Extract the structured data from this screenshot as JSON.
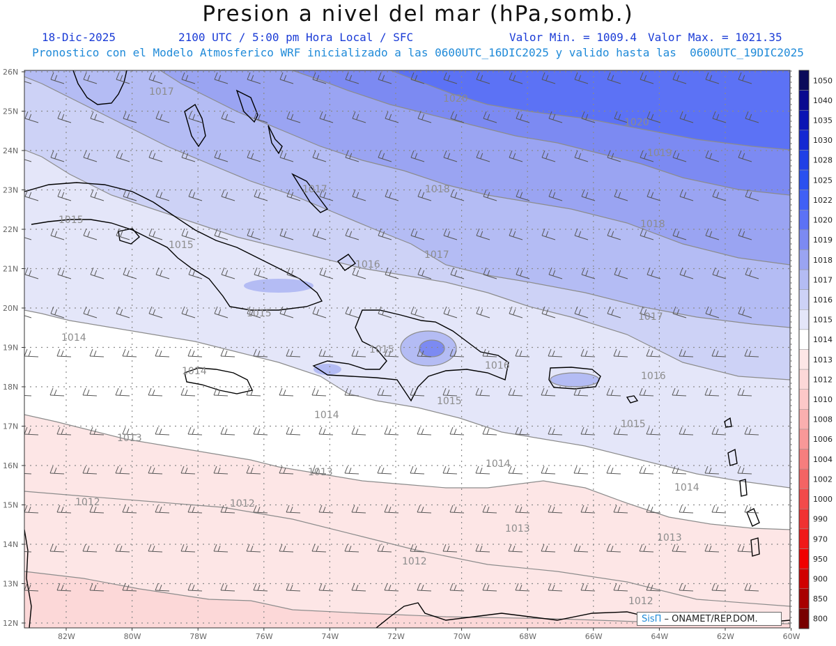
{
  "header": {
    "title": "Presion a nivel del mar (hPa,somb.)",
    "date": "18-Dic-2025",
    "time": "2100 UTC / 5:00 pm Hora Local / SFC",
    "min_label": "Valor Min. = 1009.4",
    "max_label": "Valor Max. = 1021.35",
    "model_line": "Pronostico con el Modelo Atmosferico WRF inicializado a las 0600UTC_16DIC2025 y valido hasta las  0600UTC_19DIC2025"
  },
  "axes": {
    "lat_labels": [
      "26N",
      "25N",
      "24N",
      "23N",
      "22N",
      "21N",
      "20N",
      "19N",
      "18N",
      "17N",
      "16N",
      "15N",
      "14N",
      "13N",
      "12N"
    ],
    "lon_labels": [
      "82W",
      "80W",
      "78W",
      "76W",
      "74W",
      "72W",
      "70W",
      "68W",
      "66W",
      "64W",
      "62W",
      "60W"
    ]
  },
  "colorbar": {
    "levels": [
      {
        "label": "1050",
        "color": "#0a0a5a"
      },
      {
        "label": "1040",
        "color": "#0a0a90"
      },
      {
        "label": "1035",
        "color": "#0a14b4"
      },
      {
        "label": "1030",
        "color": "#1428d2"
      },
      {
        "label": "1028",
        "color": "#2040e6"
      },
      {
        "label": "1025",
        "color": "#2a50f0"
      },
      {
        "label": "1022",
        "color": "#4060f5"
      },
      {
        "label": "1020",
        "color": "#5c72f5"
      },
      {
        "label": "1019",
        "color": "#7c8af2"
      },
      {
        "label": "1018",
        "color": "#9aa4f2"
      },
      {
        "label": "1017",
        "color": "#b4bcf4"
      },
      {
        "label": "1016",
        "color": "#cdd2f6"
      },
      {
        "label": "1015",
        "color": "#e4e6f9"
      },
      {
        "label": "1014",
        "color": "#ffffff"
      },
      {
        "label": "1013",
        "color": "#fde6e6"
      },
      {
        "label": "1012",
        "color": "#fcd8d8"
      },
      {
        "label": "1010",
        "color": "#fcc8c8"
      },
      {
        "label": "1008",
        "color": "#faafaf"
      },
      {
        "label": "1006",
        "color": "#f89898"
      },
      {
        "label": "1004",
        "color": "#f67e7e"
      },
      {
        "label": "1002",
        "color": "#f46464"
      },
      {
        "label": "1000",
        "color": "#f24a4a"
      },
      {
        "label": "990",
        "color": "#f03232"
      },
      {
        "label": "970",
        "color": "#f01818"
      },
      {
        "label": "950",
        "color": "#f00000"
      },
      {
        "label": "900",
        "color": "#d00000"
      },
      {
        "label": "850",
        "color": "#a80000"
      },
      {
        "label": "800",
        "color": "#780000"
      }
    ]
  },
  "contours": [
    {
      "label": "1020"
    },
    {
      "label": "1020"
    },
    {
      "label": "1019"
    },
    {
      "label": "1018"
    },
    {
      "label": "1018"
    },
    {
      "label": "1017"
    },
    {
      "label": "1017"
    },
    {
      "label": "1017"
    },
    {
      "label": "1017"
    },
    {
      "label": "1016"
    },
    {
      "label": "1016"
    },
    {
      "label": "1016"
    },
    {
      "label": "1015"
    },
    {
      "label": "1015"
    },
    {
      "label": "1015"
    },
    {
      "label": "1015"
    },
    {
      "label": "1015"
    },
    {
      "label": "1015"
    },
    {
      "label": "1014"
    },
    {
      "label": "1014"
    },
    {
      "label": "1014"
    },
    {
      "label": "1014"
    },
    {
      "label": "1014"
    },
    {
      "label": "1013"
    },
    {
      "label": "1013"
    },
    {
      "label": "1013"
    },
    {
      "label": "1013"
    },
    {
      "label": "1012"
    },
    {
      "label": "1012"
    },
    {
      "label": "1012"
    },
    {
      "label": "1012"
    }
  ],
  "credit": {
    "logo": "SisΠ",
    "text": " – ONAMET/REP.DOM."
  }
}
